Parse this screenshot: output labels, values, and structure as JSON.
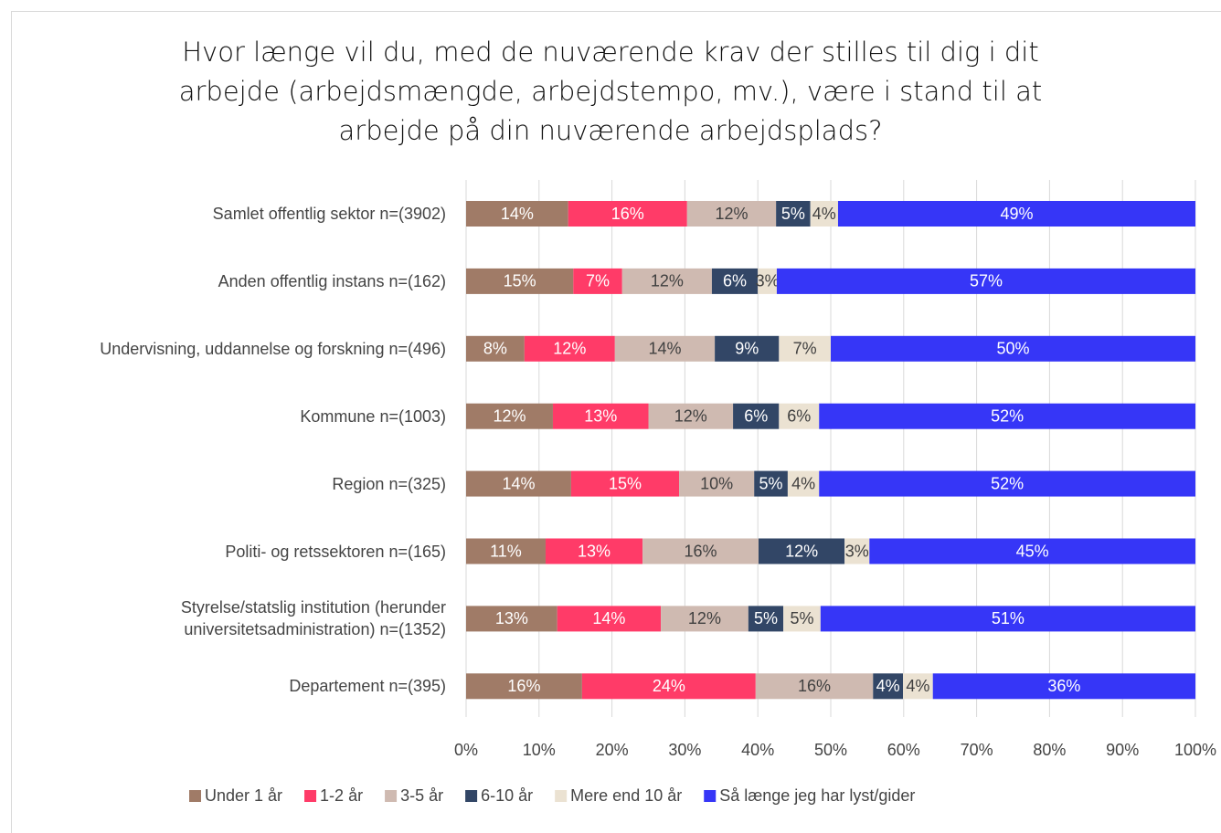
{
  "chart_data": {
    "type": "stacked-bar-horizontal",
    "title": "Hvor længe vil du, med de nuværende krav der stilles til dig i dit\narbejde (arbejdsmængde, arbejdstempo, mv.), være i stand til at\narbejde på din nuværende arbejdsplads?",
    "categories": [
      "Samlet offentlig sektor n=(3902)",
      "Anden offentlig instans n=(162)",
      "Undervisning, uddannelse og forskning n=(496)",
      "Kommune n=(1003)",
      "Region n=(325)",
      "Politi- og retssektoren n=(165)",
      "Styrelse/statslig institution (herunder\nuniversitetsadministration) n=(1352)",
      "Departement n=(395)"
    ],
    "series": [
      {
        "name": "Under 1 år",
        "color": "#a07b67",
        "values": [
          14.0,
          14.7,
          8.0,
          11.9,
          14.4,
          10.9,
          12.5,
          15.9
        ],
        "value_labels": [
          "14%",
          "15%",
          "8%",
          "12%",
          "14%",
          "11%",
          "13%",
          "16%"
        ]
      },
      {
        "name": "1-2 år",
        "color": "#ff3b68",
        "values": [
          16.3,
          6.7,
          12.4,
          13.1,
          14.8,
          13.3,
          14.2,
          23.8
        ],
        "value_labels": [
          "16%",
          "7%",
          "12%",
          "13%",
          "15%",
          "13%",
          "14%",
          "24%"
        ]
      },
      {
        "name": "3-5 år",
        "color": "#cfbab1",
        "values": [
          12.2,
          12.3,
          13.7,
          11.6,
          10.3,
          15.9,
          12.0,
          16.1
        ],
        "value_labels": [
          "12%",
          "12%",
          "14%",
          "12%",
          "10%",
          "16%",
          "12%",
          "16%"
        ]
      },
      {
        "name": "6-10 år",
        "color": "#324666",
        "values": [
          4.7,
          6.3,
          8.8,
          6.3,
          4.6,
          11.8,
          4.8,
          4.1
        ],
        "value_labels": [
          "5%",
          "6%",
          "9%",
          "6%",
          "5%",
          "12%",
          "5%",
          "4%"
        ]
      },
      {
        "name": "Mere end 10 år",
        "color": "#ebe2d2",
        "values": [
          3.8,
          2.6,
          7.1,
          5.5,
          4.3,
          3.4,
          5.1,
          4.1
        ],
        "value_labels": [
          "4%",
          "3%",
          "7%",
          "6%",
          "4%",
          "3%",
          "5%",
          "4%"
        ]
      },
      {
        "name": "Så længe jeg har lyst/gider",
        "color": "#3636f7",
        "values": [
          49.0,
          57.4,
          50.0,
          51.6,
          51.6,
          44.7,
          51.4,
          36.0
        ],
        "value_labels": [
          "49%",
          "57%",
          "50%",
          "52%",
          "52%",
          "45%",
          "51%",
          "36%"
        ]
      }
    ],
    "xlim": [
      0,
      100
    ],
    "xticks": [
      {
        "value": 0,
        "label": "0%"
      },
      {
        "value": 10,
        "label": "10%"
      },
      {
        "value": 20,
        "label": "20%"
      },
      {
        "value": 30,
        "label": "30%"
      },
      {
        "value": 40,
        "label": "40%"
      },
      {
        "value": 50,
        "label": "50%"
      },
      {
        "value": 60,
        "label": "60%"
      },
      {
        "value": 70,
        "label": "70%"
      },
      {
        "value": 80,
        "label": "80%"
      },
      {
        "value": 90,
        "label": "90%"
      },
      {
        "value": 100,
        "label": "100%"
      }
    ],
    "grid": true,
    "legend": "bottom"
  }
}
